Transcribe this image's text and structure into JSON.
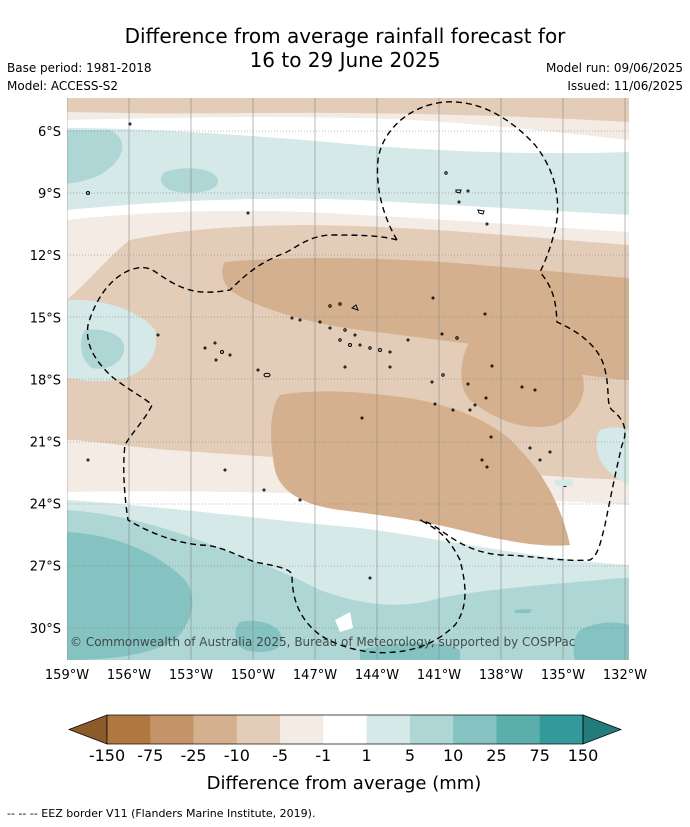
{
  "title_line1": "Difference from average rainfall forecast for",
  "title_line2": "16 to 29 June 2025",
  "base_period": "Base period: 1981-2018",
  "model": "Model: ACCESS-S2",
  "model_run": "Model run: 09/06/2025",
  "issued": "Issued: 11/06/2025",
  "copyright": "© Commonwealth of Australia 2025, Bureau of Meteorology, supported by COSPPac",
  "lat_labels": [
    "6°S",
    "9°S",
    "12°S",
    "15°S",
    "18°S",
    "21°S",
    "24°S",
    "27°S",
    "30°S"
  ],
  "lon_labels": [
    "159°W",
    "156°W",
    "153°W",
    "150°W",
    "147°W",
    "144°W",
    "141°W",
    "138°W",
    "135°W",
    "132°W"
  ],
  "colorbar": {
    "ticks": [
      "-150",
      "-75",
      "-25",
      "-10",
      "-5",
      "-1",
      "1",
      "5",
      "10",
      "25",
      "75",
      "150"
    ],
    "colors": [
      "#8c5a2b",
      "#b07840",
      "#c49468",
      "#d4b08e",
      "#e3cdb9",
      "#f3ebe4",
      "#ffffff",
      "#d4e9e8",
      "#aed6d4",
      "#84c3c1",
      "#5aaeac",
      "#33999a",
      "#237b7b"
    ],
    "label": "Difference from average (mm)"
  },
  "footnote": "-- -- -- EEZ border V11 (Flanders Marine Institute, 2019)."
}
